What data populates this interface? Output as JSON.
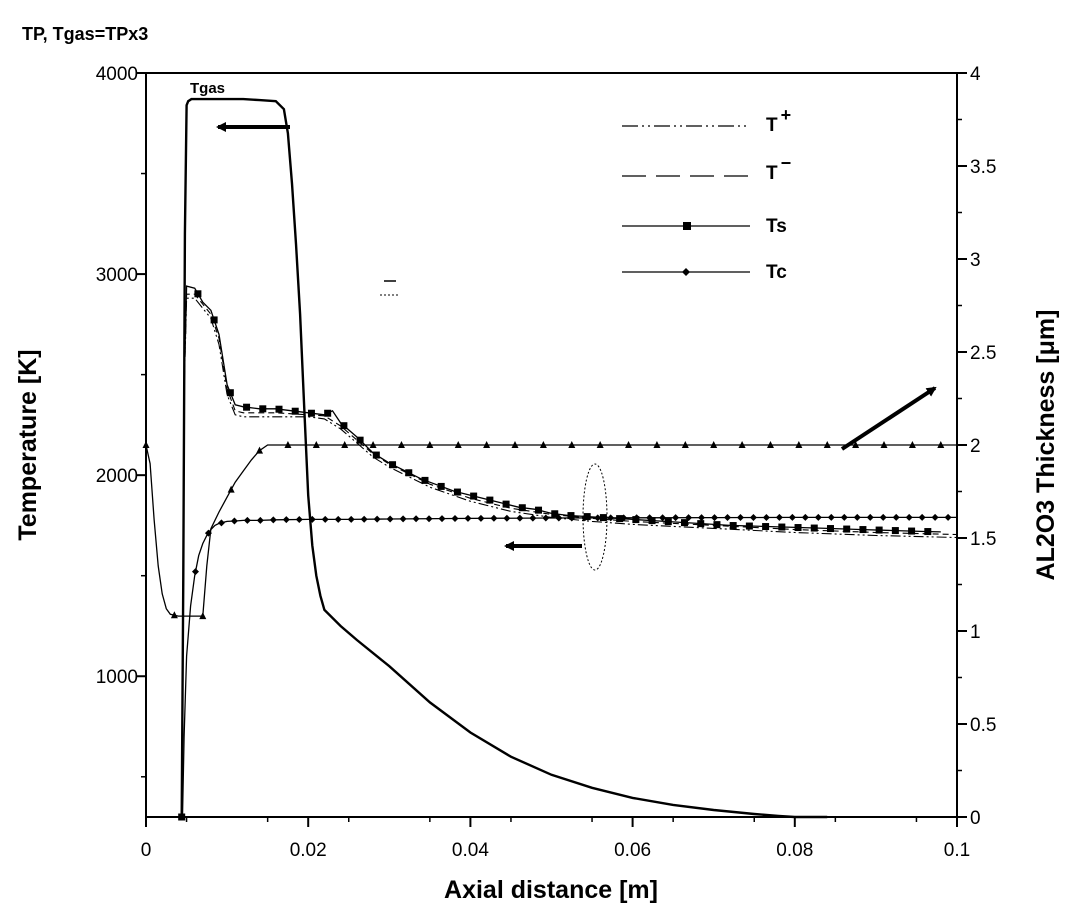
{
  "chart_data": {
    "type": "line",
    "title": "TP, Tgas=TPx3",
    "xlabel": "Axial distance [m]",
    "ylabel_left": "Temperature [K]",
    "ylabel_right": "AL2O3 Thickness [μm]",
    "xlim": [
      0,
      0.1
    ],
    "ylim_left": [
      300,
      4000
    ],
    "ylim_right": [
      0,
      4
    ],
    "x_ticks": [
      "0",
      "0.02",
      "0.04",
      "0.06",
      "0.08",
      "0.1"
    ],
    "y_left_ticks": [
      "1000",
      "2000",
      "3000",
      "4000"
    ],
    "y_right_ticks": [
      "0",
      "0.5",
      "1",
      "1.5",
      "2",
      "2.5",
      "3",
      "3.5",
      "4"
    ],
    "grid": false,
    "legend_position": "top-right",
    "legend": [
      {
        "label": "T",
        "sup": "+",
        "style": "dash-dot-dot"
      },
      {
        "label": "T",
        "sup": "−",
        "style": "dashed"
      },
      {
        "label": "Ts",
        "style": "solid-square"
      },
      {
        "label": "Tc",
        "style": "solid-diamond"
      }
    ],
    "annotations": {
      "gas_label": "Tgas"
    },
    "series": [
      {
        "name": "Tgas",
        "axis": "left",
        "x": [
          0.0044,
          0.0046,
          0.0048,
          0.005,
          0.0052,
          0.0056,
          0.0065,
          0.008,
          0.01,
          0.012,
          0.014,
          0.016,
          0.017,
          0.0175,
          0.018,
          0.0185,
          0.019,
          0.0195,
          0.02,
          0.0205,
          0.021,
          0.0215,
          0.022,
          0.024,
          0.026,
          0.03,
          0.035,
          0.04,
          0.045,
          0.05,
          0.055,
          0.06,
          0.065,
          0.07,
          0.075,
          0.078,
          0.08,
          0.084
        ],
        "y": [
          300,
          1500,
          3200,
          3840,
          3860,
          3870,
          3870,
          3870,
          3870,
          3870,
          3865,
          3860,
          3820,
          3700,
          3450,
          3150,
          2800,
          2350,
          1900,
          1650,
          1500,
          1400,
          1330,
          1250,
          1180,
          1050,
          870,
          720,
          600,
          510,
          445,
          395,
          360,
          335,
          315,
          305,
          300,
          300
        ]
      },
      {
        "name": "Ts",
        "axis": "left",
        "x": [
          0.0044,
          0.0045,
          0.0046,
          0.0047,
          0.005,
          0.006,
          0.007,
          0.008,
          0.009,
          0.01,
          0.011,
          0.012,
          0.014,
          0.016,
          0.018,
          0.02,
          0.022,
          0.023,
          0.024,
          0.026,
          0.028,
          0.03,
          0.032,
          0.034,
          0.036,
          0.038,
          0.04,
          0.042,
          0.044,
          0.046,
          0.048,
          0.05,
          0.052,
          0.054,
          0.056,
          0.058,
          0.06,
          0.064,
          0.068,
          0.072,
          0.076,
          0.08,
          0.084,
          0.088,
          0.092,
          0.096,
          0.098
        ],
        "y": [
          300,
          800,
          1750,
          2450,
          2940,
          2930,
          2860,
          2820,
          2700,
          2450,
          2350,
          2340,
          2330,
          2330,
          2320,
          2310,
          2300,
          2320,
          2260,
          2190,
          2110,
          2060,
          2020,
          1980,
          1950,
          1920,
          1900,
          1880,
          1860,
          1840,
          1830,
          1810,
          1800,
          1795,
          1790,
          1785,
          1780,
          1770,
          1760,
          1750,
          1745,
          1740,
          1735,
          1730,
          1725,
          1720,
          1718
        ]
      },
      {
        "name": "T+",
        "axis": "left",
        "x": [
          0.0044,
          0.0047,
          0.005,
          0.006,
          0.007,
          0.008,
          0.009,
          0.01,
          0.011,
          0.012,
          0.014,
          0.016,
          0.018,
          0.02,
          0.022,
          0.024,
          0.026,
          0.028,
          0.03,
          0.035,
          0.04,
          0.045,
          0.05,
          0.055,
          0.06,
          0.07,
          0.08,
          0.09,
          0.1
        ],
        "y": [
          300,
          2400,
          2880,
          2880,
          2830,
          2780,
          2650,
          2400,
          2300,
          2290,
          2290,
          2290,
          2290,
          2290,
          2280,
          2230,
          2160,
          2090,
          2040,
          1940,
          1870,
          1820,
          1790,
          1770,
          1755,
          1735,
          1715,
          1700,
          1690
        ]
      },
      {
        "name": "T-",
        "axis": "left",
        "x": [
          0.0044,
          0.0047,
          0.005,
          0.006,
          0.007,
          0.008,
          0.009,
          0.01,
          0.011,
          0.012,
          0.014,
          0.016,
          0.018,
          0.02,
          0.022,
          0.024,
          0.026,
          0.028,
          0.03,
          0.035,
          0.04,
          0.045,
          0.05,
          0.055,
          0.06,
          0.07,
          0.08,
          0.09,
          0.1
        ],
        "y": [
          300,
          2420,
          2900,
          2900,
          2850,
          2800,
          2680,
          2430,
          2320,
          2310,
          2310,
          2310,
          2305,
          2300,
          2295,
          2245,
          2175,
          2105,
          2055,
          1955,
          1885,
          1835,
          1805,
          1785,
          1770,
          1750,
          1730,
          1715,
          1705
        ]
      },
      {
        "name": "Tc",
        "axis": "left",
        "x": [
          0.0045,
          0.0047,
          0.005,
          0.0055,
          0.006,
          0.0065,
          0.007,
          0.0075,
          0.008,
          0.0085,
          0.009,
          0.0095,
          0.01,
          0.011,
          0.012,
          0.014,
          0.016,
          0.02,
          0.025,
          0.03,
          0.04,
          0.05,
          0.06,
          0.07,
          0.08,
          0.09,
          0.1
        ],
        "y": [
          300,
          700,
          1100,
          1350,
          1500,
          1600,
          1660,
          1700,
          1730,
          1750,
          1760,
          1765,
          1770,
          1772,
          1775,
          1775,
          1778,
          1780,
          1780,
          1782,
          1785,
          1787,
          1788,
          1789,
          1790,
          1790,
          1790
        ]
      },
      {
        "name": "AL2O3 thickness",
        "axis": "right",
        "x": [
          0,
          0.0005,
          0.001,
          0.0015,
          0.002,
          0.0025,
          0.003,
          0.004,
          0.005,
          0.0055,
          0.006,
          0.0065,
          0.007,
          0.0075,
          0.008,
          0.009,
          0.01,
          0.011,
          0.012,
          0.013,
          0.014,
          0.015,
          0.02,
          0.03,
          0.04,
          0.05,
          0.06,
          0.07,
          0.08,
          0.09,
          0.1
        ],
        "y": [
          2.0,
          1.9,
          1.6,
          1.35,
          1.2,
          1.12,
          1.09,
          1.08,
          1.08,
          1.08,
          1.08,
          1.08,
          1.08,
          1.35,
          1.55,
          1.64,
          1.72,
          1.8,
          1.86,
          1.92,
          1.97,
          2.0,
          2.0,
          2.0,
          2.0,
          2.0,
          2.0,
          2.0,
          2.0,
          2.0,
          2.0
        ]
      }
    ]
  }
}
